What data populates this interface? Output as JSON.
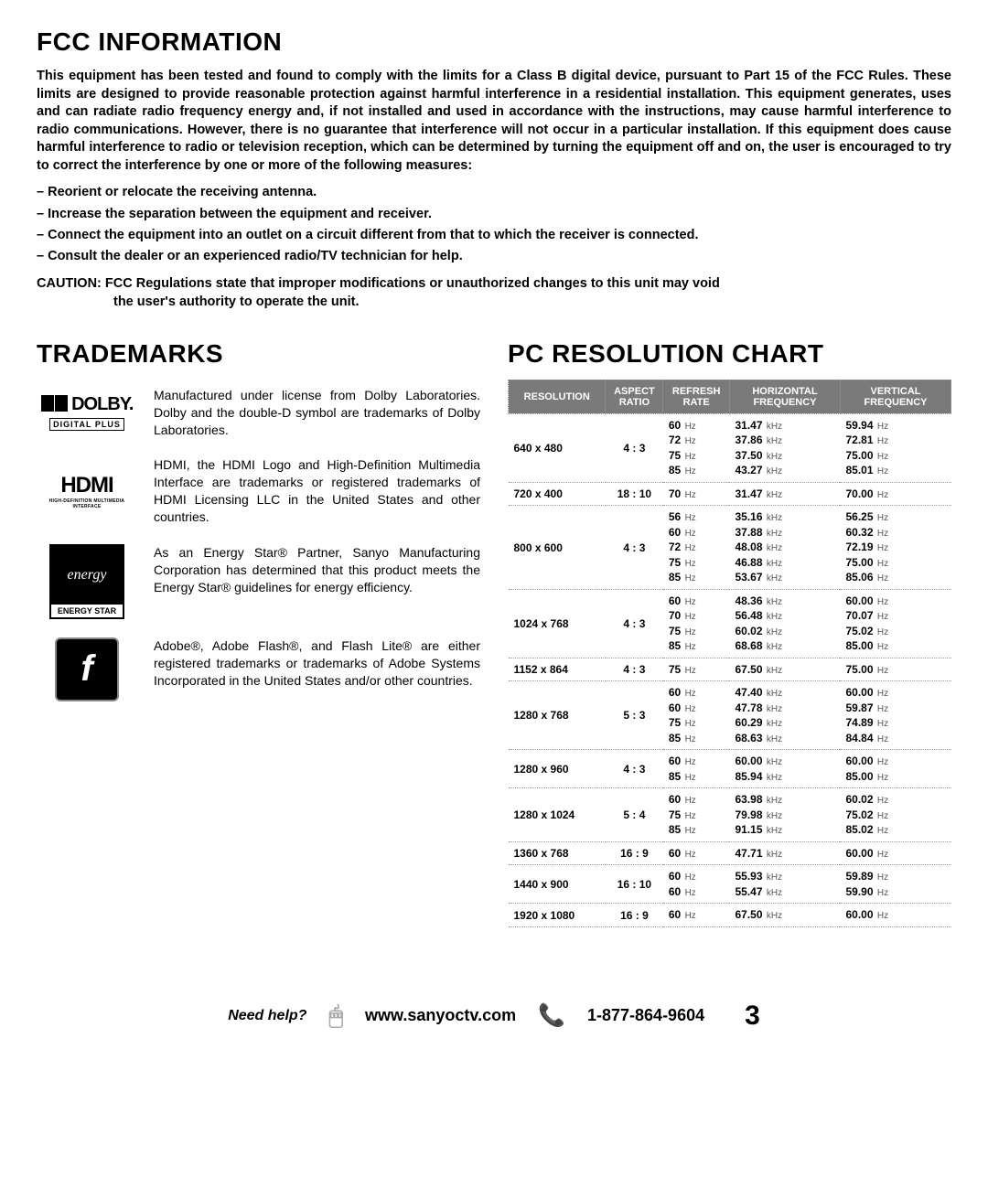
{
  "fcc": {
    "title": "FCC INFORMATION",
    "body": "This equipment has been tested and found to comply with the limits for a Class B digital device, pursuant to Part 15 of the FCC Rules.  These limits are designed to provide reasonable protection against harmful interference in a residential installation.  This equipment generates, uses and can radiate radio frequency energy and, if not installed and used in accordance with the instructions, may cause harmful interference to radio communications.  However, there is no guarantee that interference will not occur in a particular installation.  If this equipment does cause harmful interference to radio or television reception, which can be determined by turning the equipment off and on, the user is encouraged to try to correct the interference by one or more of the following  measures:",
    "measures": [
      "– Reorient or relocate the receiving antenna.",
      "– Increase the separation between the equipment and receiver.",
      "– Connect the equipment into an outlet on a circuit different from that to which the receiver is connected.",
      "– Consult the dealer or an experienced radio/TV technician for help."
    ],
    "caution_label": "CAUTION:",
    "caution_text1": "FCC Regulations state that improper modifications or unauthorized changes to this unit may void",
    "caution_text2": "the user's authority to operate the unit."
  },
  "trademarks": {
    "title": "TRADEMARKS",
    "dolby": {
      "logo_top": "DOLBY.",
      "logo_sub": "DIGITAL PLUS",
      "text": "Manufactured under license from Dolby Laboratories. Dolby and the double-D symbol are trademarks of Dolby Laboratories."
    },
    "hdmi": {
      "logo_top": "HDMI",
      "logo_sub": "HIGH-DEFINITION MULTIMEDIA INTERFACE",
      "text": "HDMI, the HDMI Logo and High-Definition Multimedia Interface are trademarks or registered trademarks of HDMI Licensing LLC in the United States and other countries."
    },
    "estar": {
      "logo_swirl": "energy",
      "logo_label": "ENERGY STAR",
      "text": "As an Energy Star® Partner, Sanyo Manufacturing Corporation has determined that this product meets the Energy Star® guidelines for energy efficiency."
    },
    "flash": {
      "logo_char": "f",
      "text": "Adobe®, Adobe Flash®, and Flash Lite® are either registered trademarks or trademarks of Adobe Systems Incorporated in the United States and/or other countries."
    }
  },
  "chart": {
    "title": "PC RESOLUTION CHART",
    "headers": {
      "res": "RESOLUTION",
      "ar": "ASPECT\nRATIO",
      "rr": "REFRESH\nRATE",
      "hf": "HORIZONTAL\nFREQUENCY",
      "vf": "VERTICAL\nFREQUENCY"
    },
    "rows": [
      {
        "res": "640 x 480",
        "ar": "4 : 3",
        "rr": [
          "60 Hz",
          "72 Hz",
          "75 Hz",
          "85 Hz"
        ],
        "hf": [
          "31.47 kHz",
          "37.86 kHz",
          "37.50 kHz",
          "43.27 kHz"
        ],
        "vf": [
          "59.94 Hz",
          "72.81 Hz",
          "75.00 Hz",
          "85.01 Hz"
        ]
      },
      {
        "res": "720 x 400",
        "ar": "18 : 10",
        "rr": [
          "70 Hz"
        ],
        "hf": [
          "31.47 kHz"
        ],
        "vf": [
          "70.00 Hz"
        ]
      },
      {
        "res": "800 x 600",
        "ar": "4 : 3",
        "rr": [
          "56 Hz",
          "60 Hz",
          "72 Hz",
          "75 Hz",
          "85 Hz"
        ],
        "hf": [
          "35.16 kHz",
          "37.88 kHz",
          "48.08 kHz",
          "46.88 kHz",
          "53.67 kHz"
        ],
        "vf": [
          "56.25 Hz",
          "60.32 Hz",
          "72.19 Hz",
          "75.00 Hz",
          "85.06 Hz"
        ]
      },
      {
        "res": "1024 x 768",
        "ar": "4 : 3",
        "rr": [
          "60 Hz",
          "70 Hz",
          "75 Hz",
          "85 Hz"
        ],
        "hf": [
          "48.36 kHz",
          "56.48 kHz",
          "60.02 kHz",
          "68.68 kHz"
        ],
        "vf": [
          "60.00 Hz",
          "70.07 Hz",
          "75.02 Hz",
          "85.00 Hz"
        ]
      },
      {
        "res": "1152 x 864",
        "ar": "4 : 3",
        "rr": [
          "75 Hz"
        ],
        "hf": [
          "67.50 kHz"
        ],
        "vf": [
          "75.00 Hz"
        ]
      },
      {
        "res": "1280 x 768",
        "ar": "5 : 3",
        "rr": [
          "60 Hz",
          "60 Hz",
          "75 Hz",
          "85 Hz"
        ],
        "hf": [
          "47.40 kHz",
          "47.78 kHz",
          "60.29 kHz",
          "68.63 kHz"
        ],
        "vf": [
          "60.00 Hz",
          "59.87 Hz",
          "74.89 Hz",
          "84.84 Hz"
        ]
      },
      {
        "res": "1280 x 960",
        "ar": "4 : 3",
        "rr": [
          "60 Hz",
          "85 Hz"
        ],
        "hf": [
          "60.00 kHz",
          "85.94 kHz"
        ],
        "vf": [
          "60.00 Hz",
          "85.00 Hz"
        ]
      },
      {
        "res": "1280 x 1024",
        "ar": "5 : 4",
        "rr": [
          "60 Hz",
          "75 Hz",
          "85 Hz"
        ],
        "hf": [
          "63.98 kHz",
          "79.98 kHz",
          "91.15 kHz"
        ],
        "vf": [
          "60.02 Hz",
          "75.02 Hz",
          "85.02 Hz"
        ]
      },
      {
        "res": "1360 x 768",
        "ar": "16 : 9",
        "rr": [
          "60 Hz"
        ],
        "hf": [
          "47.71 kHz"
        ],
        "vf": [
          "60.00 Hz"
        ]
      },
      {
        "res": "1440 x 900",
        "ar": "16 : 10",
        "rr": [
          "60 Hz",
          "60 Hz"
        ],
        "hf": [
          "55.93 kHz",
          "55.47 kHz"
        ],
        "vf": [
          "59.89 Hz",
          "59.90 Hz"
        ]
      },
      {
        "res": "1920 x 1080",
        "ar": "16 : 9",
        "rr": [
          "60 Hz"
        ],
        "hf": [
          "67.50 kHz"
        ],
        "vf": [
          "60.00 Hz"
        ]
      }
    ],
    "colors": {
      "header_bg": "#7a7a7a",
      "header_fg": "#ffffff",
      "border": "#999999"
    }
  },
  "footer": {
    "need_help": "Need help?",
    "url": "www.sanyoctv.com",
    "phone": "1-877-864-9604",
    "page": "3"
  }
}
